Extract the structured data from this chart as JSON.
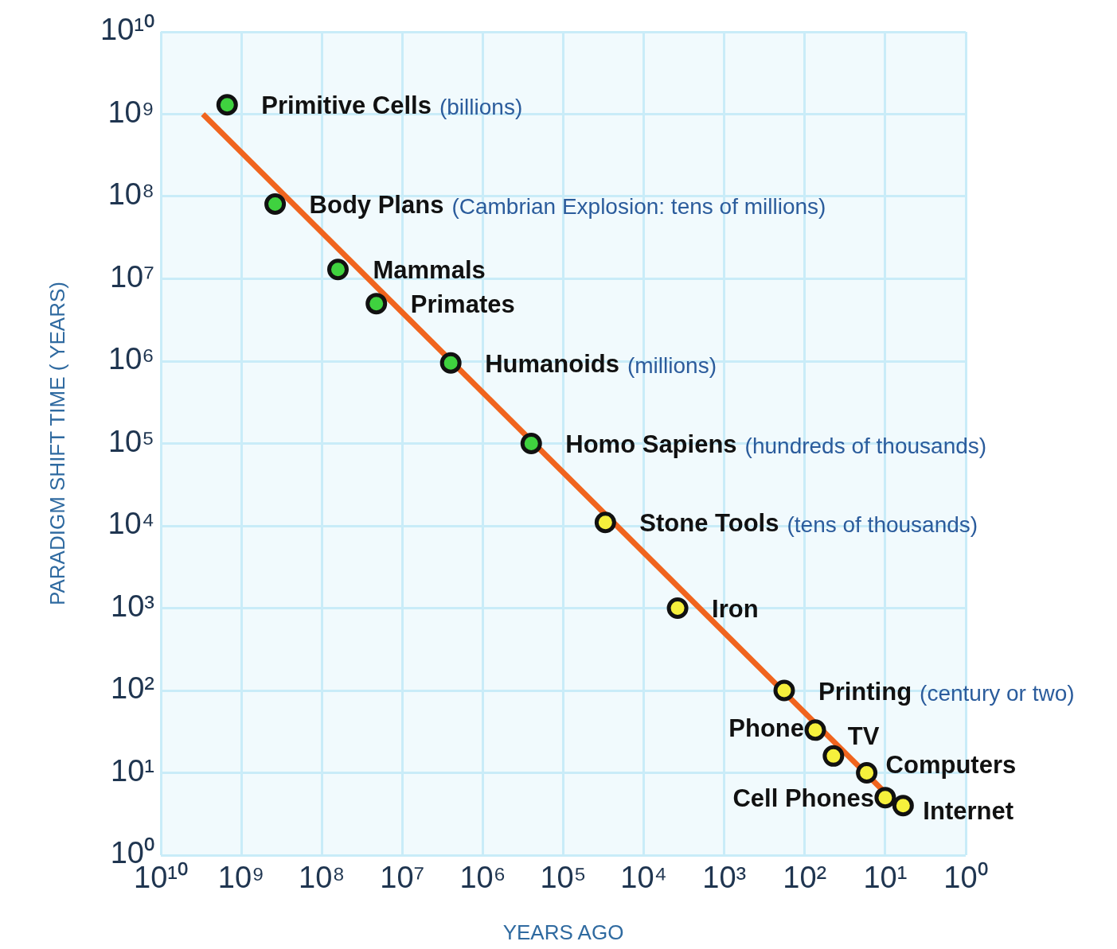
{
  "chart_data": {
    "type": "scatter",
    "xlabel": "YEARS AGO",
    "ylabel": "PARADIGM SHIFT TIME ( YEARS)",
    "log": "xy",
    "grid": true,
    "legend": false,
    "xlim": [
      10000000000,
      1
    ],
    "ylim": [
      1,
      10000000000
    ],
    "xticks": [
      {
        "value": 10000000000,
        "label": "10¹⁰"
      },
      {
        "value": 1000000000,
        "label": "10⁹"
      },
      {
        "value": 100000000,
        "label": "10⁸"
      },
      {
        "value": 10000000,
        "label": "10⁷"
      },
      {
        "value": 1000000,
        "label": "10⁶"
      },
      {
        "value": 100000,
        "label": "10⁵"
      },
      {
        "value": 10000,
        "label": "10⁴"
      },
      {
        "value": 1000,
        "label": "10³"
      },
      {
        "value": 100,
        "label": "10²"
      },
      {
        "value": 10,
        "label": "10¹"
      },
      {
        "value": 1,
        "label": "10⁰"
      }
    ],
    "yticks": [
      {
        "value": 1,
        "label": "10⁰"
      },
      {
        "value": 10,
        "label": "10¹"
      },
      {
        "value": 100,
        "label": "10²"
      },
      {
        "value": 1000,
        "label": "10³"
      },
      {
        "value": 10000,
        "label": "10⁴"
      },
      {
        "value": 100000,
        "label": "10⁵"
      },
      {
        "value": 1000000,
        "label": "10⁶"
      },
      {
        "value": 10000000,
        "label": "10⁷"
      },
      {
        "value": 100000000,
        "label": "10⁸"
      },
      {
        "value": 1000000000,
        "label": "10⁹"
      },
      {
        "value": 10000000000,
        "label": "10¹⁰"
      }
    ],
    "series": [
      {
        "type": "line",
        "color": "#f0641e",
        "marker": "none",
        "line_style": "solid",
        "x": [
          3000000000,
          5.5
        ],
        "values": [
          1000000000,
          3.2
        ]
      },
      {
        "color": "#3fd23f",
        "marker": "circle",
        "x": [
          1500000000,
          380000000,
          63000000,
          21000000,
          2500000,
          250000
        ],
        "values": [
          1300000000,
          81000000,
          13000000,
          5000000,
          950000,
          100000
        ]
      },
      {
        "color": "#f6f03c",
        "marker": "circle",
        "x": [
          30000,
          3800,
          180,
          74,
          44,
          17,
          10,
          6
        ],
        "values": [
          11000,
          1000,
          100,
          33,
          16,
          10,
          5,
          4
        ]
      }
    ],
    "annotations": [
      {
        "text": "Primitive Cells",
        "x": 1500000000,
        "y": 1300000000
      },
      "(billions)",
      {
        "text": "Body Plans",
        "x": 380000000,
        "y": 81000000
      },
      "(Cambrian Explosion: tens of millions)",
      {
        "text": "Mammals",
        "x": 63000000,
        "y": 13000000
      },
      {
        "text": "Primates",
        "x": 21000000,
        "y": 5000000
      },
      {
        "text": "Humanoids",
        "x": 2500000,
        "y": 950000
      },
      "(millions)",
      {
        "text": "Homo Sapiens",
        "x": 250000,
        "y": 100000
      },
      "(hundreds of thousands)",
      {
        "text": "Stone Tools",
        "x": 30000,
        "y": 11000
      },
      "(tens of thousands)",
      {
        "text": "Iron",
        "x": 3800,
        "y": 1000
      },
      {
        "text": "Printing",
        "x": 180,
        "y": 100
      },
      "(century or two)",
      {
        "text": "Phone",
        "x": 74,
        "y": 33
      },
      {
        "text": "TV",
        "x": 44,
        "y": 16
      },
      {
        "text": "Computers",
        "x": 17,
        "y": 10
      },
      {
        "text": "Cell Phones",
        "x": 10,
        "y": 5
      },
      {
        "text": "Internet",
        "x": 6,
        "y": 4
      }
    ]
  }
}
